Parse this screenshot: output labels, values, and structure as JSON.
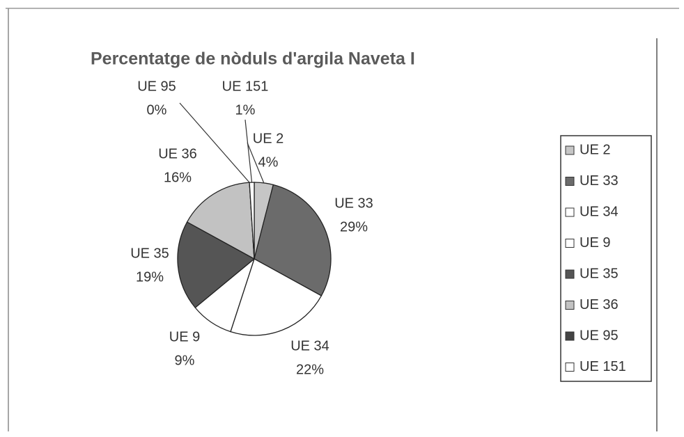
{
  "chart_data": {
    "type": "pie",
    "title": "Percentatge de nòduls d'argila Naveta I",
    "categories": [
      "UE 2",
      "UE 33",
      "UE 34",
      "UE 9",
      "UE 35",
      "UE 36",
      "UE 95",
      "UE 151"
    ],
    "values": [
      4,
      29,
      22,
      9,
      19,
      16,
      0,
      1
    ],
    "value_labels": [
      "4%",
      "29%",
      "22%",
      "9%",
      "19%",
      "16%",
      "0%",
      "1%"
    ],
    "colors": [
      "#c6c6c6",
      "#6b6b6b",
      "#ffffff",
      "#ffffff",
      "#555555",
      "#c2c2c2",
      "#444444",
      "#ffffff"
    ],
    "legend": "right"
  }
}
